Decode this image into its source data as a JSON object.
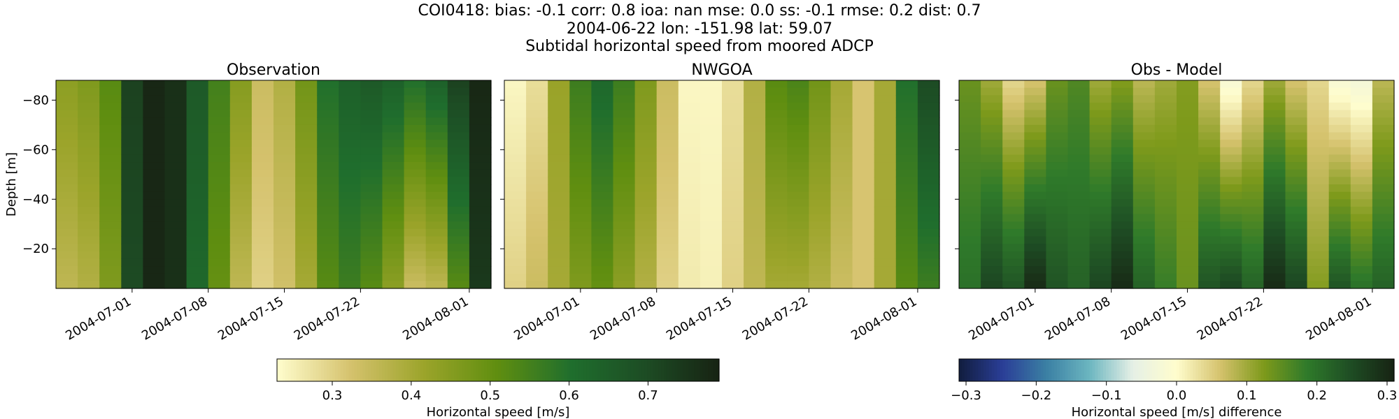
{
  "header": {
    "line1": "COI0418: bias: -0.1  corr: 0.8  ioa: nan  mse: 0.0  ss: -0.1  rmse: 0.2  dist: 0.7",
    "line2": "2004-06-22 lon: -151.98 lat: 59.07",
    "line3": "Subtidal horizontal speed from moored ADCP"
  },
  "chart_data": [
    {
      "type": "heatmap",
      "title": "Observation",
      "ylabel": "Depth [m]",
      "xlabel": "",
      "x_range": [
        "2004-06-24",
        "2004-08-03"
      ],
      "ylim": [
        -88,
        -4
      ],
      "x_ticks": [
        "2004-07-01",
        "2004-07-08",
        "2004-07-15",
        "2004-07-22",
        "2004-08-01"
      ],
      "y_ticks": [
        -20,
        -40,
        -60,
        -80
      ],
      "colormap": "speed",
      "vlim": [
        0.23,
        0.79
      ],
      "columns": [
        {
          "start": "2004-06-24",
          "top": 0.44,
          "bottom": 0.36
        },
        {
          "start": "2004-06-26",
          "top": 0.46,
          "bottom": 0.38
        },
        {
          "start": "2004-06-28",
          "top": 0.52,
          "bottom": 0.46
        },
        {
          "start": "2004-06-30",
          "top": 0.72,
          "bottom": 0.7
        },
        {
          "start": "2004-07-02",
          "top": 0.78,
          "bottom": 0.78
        },
        {
          "start": "2004-07-04",
          "top": 0.76,
          "bottom": 0.76
        },
        {
          "start": "2004-07-06",
          "top": 0.66,
          "bottom": 0.62
        },
        {
          "start": "2004-07-08",
          "top": 0.55,
          "bottom": 0.5
        },
        {
          "start": "2004-07-10",
          "top": 0.45,
          "bottom": 0.36
        },
        {
          "start": "2004-07-12",
          "top": 0.34,
          "bottom": 0.3
        },
        {
          "start": "2004-07-14",
          "top": 0.38,
          "bottom": 0.33
        },
        {
          "start": "2004-07-16",
          "top": 0.48,
          "bottom": 0.4
        },
        {
          "start": "2004-07-18",
          "top": 0.6,
          "bottom": 0.52
        },
        {
          "start": "2004-07-20",
          "top": 0.64,
          "bottom": 0.56
        },
        {
          "start": "2004-07-22",
          "top": 0.66,
          "bottom": 0.52
        },
        {
          "start": "2004-07-24",
          "top": 0.64,
          "bottom": 0.44
        },
        {
          "start": "2004-07-26",
          "top": 0.6,
          "bottom": 0.34
        },
        {
          "start": "2004-07-28",
          "top": 0.64,
          "bottom": 0.36
        },
        {
          "start": "2004-07-30",
          "top": 0.72,
          "bottom": 0.52
        },
        {
          "start": "2004-08-01",
          "top": 0.78,
          "bottom": 0.74
        }
      ]
    },
    {
      "type": "heatmap",
      "title": "NWGOA",
      "xlabel": "",
      "x_range": [
        "2004-06-24",
        "2004-08-03"
      ],
      "ylim": [
        -88,
        -4
      ],
      "x_ticks": [
        "2004-07-01",
        "2004-07-08",
        "2004-07-15",
        "2004-07-22",
        "2004-08-01"
      ],
      "y_ticks": [
        -20,
        -40,
        -60,
        -80
      ],
      "colormap": "speed",
      "vlim": [
        0.23,
        0.79
      ],
      "columns": [
        {
          "start": "2004-06-24",
          "top": 0.24,
          "bottom": 0.3
        },
        {
          "start": "2004-06-26",
          "top": 0.28,
          "bottom": 0.34
        },
        {
          "start": "2004-06-28",
          "top": 0.42,
          "bottom": 0.4
        },
        {
          "start": "2004-06-30",
          "top": 0.56,
          "bottom": 0.46
        },
        {
          "start": "2004-07-02",
          "top": 0.62,
          "bottom": 0.5
        },
        {
          "start": "2004-07-04",
          "top": 0.56,
          "bottom": 0.44
        },
        {
          "start": "2004-07-06",
          "top": 0.46,
          "bottom": 0.38
        },
        {
          "start": "2004-07-08",
          "top": 0.34,
          "bottom": 0.3
        },
        {
          "start": "2004-07-10",
          "top": 0.24,
          "bottom": 0.26
        },
        {
          "start": "2004-07-12",
          "top": 0.24,
          "bottom": 0.25
        },
        {
          "start": "2004-07-14",
          "top": 0.28,
          "bottom": 0.3
        },
        {
          "start": "2004-07-16",
          "top": 0.38,
          "bottom": 0.36
        },
        {
          "start": "2004-07-18",
          "top": 0.52,
          "bottom": 0.4
        },
        {
          "start": "2004-07-20",
          "top": 0.54,
          "bottom": 0.4
        },
        {
          "start": "2004-07-22",
          "top": 0.48,
          "bottom": 0.38
        },
        {
          "start": "2004-07-24",
          "top": 0.4,
          "bottom": 0.34
        },
        {
          "start": "2004-07-26",
          "top": 0.32,
          "bottom": 0.32
        },
        {
          "start": "2004-07-28",
          "top": 0.4,
          "bottom": 0.4
        },
        {
          "start": "2004-07-30",
          "top": 0.6,
          "bottom": 0.52
        },
        {
          "start": "2004-08-01",
          "top": 0.7,
          "bottom": 0.56
        }
      ]
    },
    {
      "type": "heatmap",
      "title": "Obs - Model",
      "xlabel": "",
      "x_range": [
        "2004-06-24",
        "2004-08-03"
      ],
      "ylim": [
        -88,
        -4
      ],
      "x_ticks": [
        "2004-07-01",
        "2004-07-08",
        "2004-07-15",
        "2004-07-22",
        "2004-08-01"
      ],
      "y_ticks": [
        -20,
        -40,
        -60,
        -80
      ],
      "colormap": "delta",
      "vlim": [
        -0.31,
        0.31
      ],
      "columns": [
        {
          "start": "2004-06-24",
          "top": 0.14,
          "bottom": 0.2
        },
        {
          "start": "2004-06-26",
          "top": 0.1,
          "bottom": 0.26
        },
        {
          "start": "2004-06-28",
          "top": 0.04,
          "bottom": 0.24
        },
        {
          "start": "2004-06-30",
          "top": 0.06,
          "bottom": 0.3
        },
        {
          "start": "2004-07-02",
          "top": 0.14,
          "bottom": 0.24
        },
        {
          "start": "2004-07-04",
          "top": 0.16,
          "bottom": 0.22
        },
        {
          "start": "2004-07-06",
          "top": 0.1,
          "bottom": 0.26
        },
        {
          "start": "2004-07-08",
          "top": 0.12,
          "bottom": 0.3
        },
        {
          "start": "2004-07-10",
          "top": 0.08,
          "bottom": 0.22
        },
        {
          "start": "2004-07-12",
          "top": 0.1,
          "bottom": 0.18
        },
        {
          "start": "2004-07-14",
          "top": 0.12,
          "bottom": 0.14
        },
        {
          "start": "2004-07-16",
          "top": 0.06,
          "bottom": 0.24
        },
        {
          "start": "2004-07-18",
          "top": -0.02,
          "bottom": 0.26
        },
        {
          "start": "2004-07-20",
          "top": 0.04,
          "bottom": 0.22
        },
        {
          "start": "2004-07-22",
          "top": 0.1,
          "bottom": 0.3
        },
        {
          "start": "2004-07-24",
          "top": 0.06,
          "bottom": 0.26
        },
        {
          "start": "2004-07-26",
          "top": 0.04,
          "bottom": 0.12
        },
        {
          "start": "2004-07-28",
          "top": -0.02,
          "bottom": 0.24
        },
        {
          "start": "2004-07-30",
          "top": -0.03,
          "bottom": 0.2
        },
        {
          "start": "2004-08-01",
          "top": 0.08,
          "bottom": 0.22
        }
      ]
    }
  ],
  "colorbars": [
    {
      "label": "Horizontal speed [m/s]",
      "colormap": "speed",
      "vlim": [
        0.23,
        0.79
      ],
      "ticks": [
        "0.3",
        "0.4",
        "0.5",
        "0.6",
        "0.7"
      ],
      "tick_values": [
        0.3,
        0.4,
        0.5,
        0.6,
        0.7
      ]
    },
    {
      "label": "Horizontal speed [m/s] difference",
      "colormap": "delta",
      "vlim": [
        -0.31,
        0.31
      ],
      "ticks": [
        "−0.3",
        "−0.2",
        "−0.1",
        "0.0",
        "0.1",
        "0.2",
        "0.3"
      ],
      "tick_values": [
        -0.3,
        -0.2,
        -0.1,
        0.0,
        0.1,
        0.2,
        0.3
      ]
    }
  ],
  "colormaps": {
    "speed": [
      "#fffdcd",
      "#d5c26d",
      "#9ba42a",
      "#5f8e10",
      "#1f6e2d",
      "#1d4c24",
      "#172313"
    ],
    "delta": [
      "#111d3e",
      "#2a3e97",
      "#3a7fa3",
      "#6cb6c0",
      "#e6f0e6",
      "#fffdcd",
      "#d5c26d",
      "#7e9a1b",
      "#2f7a2a",
      "#1e4d24",
      "#172313"
    ]
  }
}
